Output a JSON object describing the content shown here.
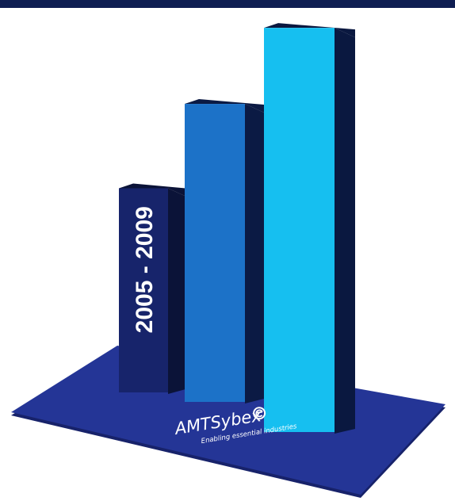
{
  "colors": {
    "top_band": "#0f1e52",
    "platform": "#243596",
    "platform_edge": "#17226a",
    "bar_dark_front": "#17246b",
    "bar_dark_side": "#0b1338",
    "bar_mid_front": "#1c72c8",
    "bar_mid_side": "#0b1a44",
    "bar_light_front": "#16bff0",
    "bar_light_side": "#0a1840",
    "text": "#ffffff"
  },
  "chart_data": {
    "type": "bar",
    "categories": [
      "",
      "",
      ""
    ],
    "values": [
      5,
      7.3,
      9.9
    ],
    "ylim": [
      0,
      10
    ],
    "grid": false,
    "legend": "none",
    "annotations": [
      "2005 - 2009"
    ],
    "bar_colors": [
      "#17246b",
      "#1c72c8",
      "#16bff0"
    ]
  },
  "logo": {
    "name": "AMTSybex",
    "tagline": "Enabling essential industries",
    "mark_icon": "swirl-e-icon"
  }
}
